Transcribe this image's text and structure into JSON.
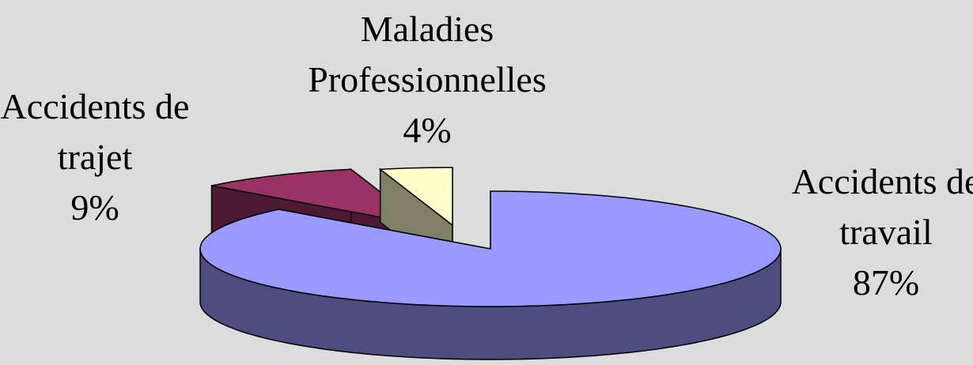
{
  "chart_data": {
    "type": "pie3d",
    "categories": [
      "Accidents de travail",
      "Accidents de trajet",
      "Maladies Professionnelles"
    ],
    "values": [
      87,
      9,
      4
    ],
    "value_labels": [
      "87%",
      "9%",
      "4%"
    ],
    "colors": [
      "#9999ff",
      "#993366",
      "#ffffcc"
    ]
  }
}
